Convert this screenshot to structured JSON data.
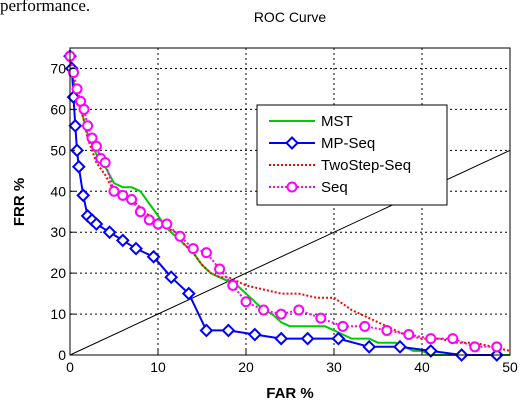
{
  "page_text": "performance.",
  "chart_data": {
    "type": "line",
    "title": "ROC Curve",
    "xlabel": "FAR %",
    "ylabel": "FRR %",
    "xlim": [
      0,
      50
    ],
    "ylim": [
      0,
      75
    ],
    "xticks": [
      0,
      10,
      20,
      30,
      40,
      50
    ],
    "yticks": [
      0,
      10,
      20,
      30,
      40,
      50,
      60,
      70
    ],
    "grid": true,
    "legend_position": "upper-right",
    "reference_line": {
      "x": [
        0,
        50
      ],
      "y": [
        0,
        50
      ],
      "color": "#000000"
    },
    "series": [
      {
        "name": "MST",
        "color": "#00cc00",
        "style": "solid",
        "marker": "none",
        "x": [
          0,
          0.3,
          0.6,
          1.0,
          1.5,
          2.0,
          3.0,
          4.0,
          5.0,
          6.0,
          7.0,
          8.0,
          9.0,
          10.0,
          11.0,
          12.0,
          13.0,
          14.0,
          15.0,
          16.0,
          17.0,
          18.0,
          19.0,
          20.0,
          21.0,
          22.0,
          23.0,
          24.0,
          25.0,
          26.0,
          27.0,
          28.0,
          29.0,
          30.0,
          31.0,
          32.0,
          33.0,
          34.0,
          35.0,
          36.0,
          37.0,
          38.0,
          39.0,
          40.0,
          41.0,
          42.0,
          45.0,
          50.0
        ],
        "y": [
          73,
          68,
          65,
          62,
          58,
          54,
          49,
          46,
          42,
          41,
          41,
          40,
          37,
          34,
          31,
          29,
          27,
          25,
          22,
          20,
          19,
          18,
          17,
          15,
          13,
          11,
          10,
          8,
          7,
          7,
          7,
          7,
          7,
          6,
          5,
          4,
          4,
          4,
          3,
          3,
          3,
          2,
          1,
          1,
          0,
          0,
          0,
          0
        ]
      },
      {
        "name": "MP-Seq",
        "color": "#0000ff",
        "style": "solid",
        "marker": "diamond",
        "x": [
          0.0,
          0.2,
          0.4,
          0.6,
          0.8,
          1.0,
          1.5,
          2.0,
          2.5,
          3.0,
          4.5,
          6.0,
          7.5,
          9.5,
          11.5,
          13.5,
          15.5,
          18.0,
          21.0,
          24.0,
          27.0,
          30.5,
          34.0,
          37.5,
          41.0,
          44.5,
          48.5
        ],
        "y": [
          73,
          70,
          63,
          56,
          50,
          46,
          39,
          34,
          33,
          32,
          30,
          28,
          26,
          24,
          19,
          15,
          6,
          6,
          5,
          4,
          4,
          4,
          2,
          2,
          1,
          0,
          0
        ]
      },
      {
        "name": "TwoStep-Seq",
        "color": "#ff0000",
        "style": "dotted",
        "marker": "none",
        "x": [
          0.0,
          0.3,
          0.6,
          1.0,
          1.5,
          2.0,
          3.0,
          4.0,
          5.0,
          6.0,
          7.0,
          8.0,
          9.0,
          10.0,
          11.0,
          12.0,
          13.0,
          14.0,
          15.0,
          16.0,
          17.0,
          18.0,
          19.0,
          20.0,
          22.0,
          24.0,
          26.0,
          28.0,
          30.0,
          32.0,
          34.0,
          36.0,
          38.0,
          40.0,
          42.0,
          44.0,
          46.0,
          48.0,
          50.0
        ],
        "y": [
          72,
          69,
          66,
          62,
          58,
          53,
          47,
          44,
          40,
          39,
          38,
          36,
          34,
          32,
          31,
          30,
          27,
          25,
          22,
          20,
          19,
          19,
          18,
          17,
          16,
          15,
          15,
          14,
          14,
          11,
          9,
          7,
          5,
          4,
          4,
          3,
          3,
          2,
          1
        ]
      },
      {
        "name": "Seq",
        "color": "#ff00ff",
        "style": "dotted",
        "marker": "circle",
        "x": [
          0.0,
          0.4,
          0.8,
          1.2,
          1.6,
          2.0,
          2.5,
          3.0,
          3.5,
          4.0,
          5.0,
          6.0,
          7.0,
          8.0,
          9.0,
          10.0,
          11.0,
          12.5,
          14.0,
          15.5,
          17.0,
          18.5,
          20.0,
          22.0,
          24.0,
          26.0,
          28.5,
          31.0,
          33.5,
          36.0,
          38.5,
          41.0,
          43.5,
          46.0,
          48.5
        ],
        "y": [
          73,
          69,
          65,
          62,
          60,
          56,
          53,
          51,
          48,
          47,
          40,
          39,
          38,
          35,
          33,
          32,
          32,
          29,
          26,
          25,
          21,
          17,
          13,
          11,
          10,
          11,
          9,
          7,
          7,
          6,
          5,
          4,
          4,
          2,
          2
        ]
      }
    ]
  }
}
